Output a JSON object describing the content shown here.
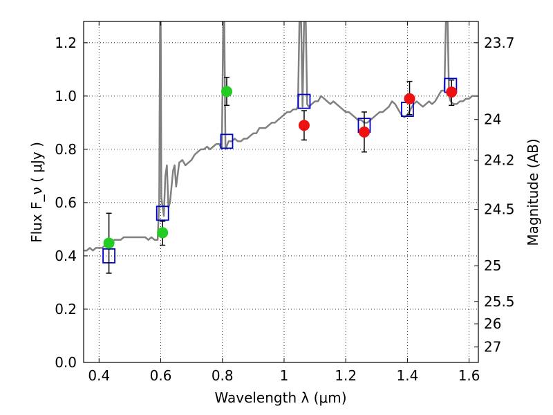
{
  "chart_data": {
    "type": "scatter",
    "xlabel": "Wavelength  λ (μm)",
    "ylabel": "Flux  F_ν  ( μJy )",
    "ylabel_right": "Magnitude (AB)",
    "xlim": [
      0.35,
      1.63
    ],
    "ylim": [
      0.0,
      1.28
    ],
    "grid": true,
    "x_ticks": [
      {
        "value": 0.4,
        "label": "0.4"
      },
      {
        "value": 0.6,
        "label": "0.6"
      },
      {
        "value": 0.8,
        "label": "0.8"
      },
      {
        "value": 1.0,
        "label": "1"
      },
      {
        "value": 1.2,
        "label": "1.2"
      },
      {
        "value": 1.4,
        "label": "1.4"
      },
      {
        "value": 1.6,
        "label": "1.6"
      }
    ],
    "y_ticks": [
      {
        "value": 0.0,
        "label": "0.0"
      },
      {
        "value": 0.2,
        "label": "0.2"
      },
      {
        "value": 0.4,
        "label": "0.4"
      },
      {
        "value": 0.6,
        "label": "0.6"
      },
      {
        "value": 0.8,
        "label": "0.8"
      },
      {
        "value": 1.0,
        "label": "1.0"
      },
      {
        "value": 1.2,
        "label": "1.2"
      }
    ],
    "right_ticks": [
      {
        "label": "23.7",
        "flux": 1.2
      },
      {
        "label": "24",
        "flux": 0.912
      },
      {
        "label": "24.2",
        "flux": 0.759
      },
      {
        "label": "24.5",
        "flux": 0.575
      },
      {
        "label": "25",
        "flux": 0.363
      },
      {
        "label": "25.5",
        "flux": 0.229
      },
      {
        "label": "26",
        "flux": 0.145
      },
      {
        "label": "27",
        "flux": 0.058
      }
    ],
    "series": [
      {
        "kind": "line",
        "color": "#808080",
        "points": [
          [
            0.35,
            0.42
          ],
          [
            0.36,
            0.42
          ],
          [
            0.37,
            0.43
          ],
          [
            0.38,
            0.42
          ],
          [
            0.39,
            0.43
          ],
          [
            0.4,
            0.43
          ],
          [
            0.41,
            0.43
          ],
          [
            0.42,
            0.44
          ],
          [
            0.43,
            0.45
          ],
          [
            0.44,
            0.45
          ],
          [
            0.45,
            0.46
          ],
          [
            0.46,
            0.46
          ],
          [
            0.47,
            0.46
          ],
          [
            0.48,
            0.47
          ],
          [
            0.49,
            0.47
          ],
          [
            0.5,
            0.47
          ],
          [
            0.51,
            0.47
          ],
          [
            0.52,
            0.47
          ],
          [
            0.53,
            0.47
          ],
          [
            0.54,
            0.47
          ],
          [
            0.55,
            0.47
          ],
          [
            0.56,
            0.46
          ],
          [
            0.57,
            0.47
          ],
          [
            0.58,
            0.46
          ],
          [
            0.59,
            0.46
          ],
          [
            0.595,
            0.6
          ],
          [
            0.598,
            1.3
          ],
          [
            0.6,
            1.3
          ],
          [
            0.602,
            0.62
          ],
          [
            0.61,
            0.55
          ],
          [
            0.615,
            0.7
          ],
          [
            0.62,
            0.74
          ],
          [
            0.625,
            0.58
          ],
          [
            0.63,
            0.6
          ],
          [
            0.64,
            0.72
          ],
          [
            0.645,
            0.74
          ],
          [
            0.65,
            0.66
          ],
          [
            0.66,
            0.75
          ],
          [
            0.67,
            0.76
          ],
          [
            0.68,
            0.74
          ],
          [
            0.69,
            0.75
          ],
          [
            0.7,
            0.76
          ],
          [
            0.71,
            0.78
          ],
          [
            0.72,
            0.79
          ],
          [
            0.73,
            0.8
          ],
          [
            0.74,
            0.8
          ],
          [
            0.75,
            0.81
          ],
          [
            0.76,
            0.8
          ],
          [
            0.77,
            0.81
          ],
          [
            0.78,
            0.82
          ],
          [
            0.79,
            0.82
          ],
          [
            0.798,
            0.8
          ],
          [
            0.803,
            1.3
          ],
          [
            0.806,
            1.3
          ],
          [
            0.81,
            0.8
          ],
          [
            0.82,
            0.83
          ],
          [
            0.83,
            0.83
          ],
          [
            0.84,
            0.84
          ],
          [
            0.85,
            0.83
          ],
          [
            0.86,
            0.83
          ],
          [
            0.87,
            0.84
          ],
          [
            0.88,
            0.84
          ],
          [
            0.89,
            0.85
          ],
          [
            0.9,
            0.86
          ],
          [
            0.91,
            0.86
          ],
          [
            0.92,
            0.88
          ],
          [
            0.93,
            0.88
          ],
          [
            0.94,
            0.88
          ],
          [
            0.95,
            0.89
          ],
          [
            0.96,
            0.9
          ],
          [
            0.97,
            0.9
          ],
          [
            0.98,
            0.91
          ],
          [
            0.99,
            0.92
          ],
          [
            1.0,
            0.93
          ],
          [
            1.01,
            0.94
          ],
          [
            1.02,
            0.94
          ],
          [
            1.03,
            0.95
          ],
          [
            1.04,
            0.95
          ],
          [
            1.045,
            0.96
          ],
          [
            1.05,
            1.3
          ],
          [
            1.055,
            1.3
          ],
          [
            1.06,
            0.96
          ],
          [
            1.065,
            1.3
          ],
          [
            1.07,
            1.3
          ],
          [
            1.075,
            0.97
          ],
          [
            1.08,
            0.96
          ],
          [
            1.09,
            0.97
          ],
          [
            1.1,
            0.98
          ],
          [
            1.11,
            0.98
          ],
          [
            1.12,
            1.0
          ],
          [
            1.13,
            0.99
          ],
          [
            1.14,
            0.98
          ],
          [
            1.15,
            0.97
          ],
          [
            1.16,
            0.98
          ],
          [
            1.17,
            0.97
          ],
          [
            1.18,
            0.96
          ],
          [
            1.19,
            0.95
          ],
          [
            1.2,
            0.94
          ],
          [
            1.21,
            0.94
          ],
          [
            1.22,
            0.93
          ],
          [
            1.23,
            0.92
          ],
          [
            1.24,
            0.91
          ],
          [
            1.25,
            0.91
          ],
          [
            1.26,
            0.9
          ],
          [
            1.27,
            0.9
          ],
          [
            1.28,
            0.91
          ],
          [
            1.29,
            0.92
          ],
          [
            1.3,
            0.93
          ],
          [
            1.31,
            0.94
          ],
          [
            1.32,
            0.94
          ],
          [
            1.33,
            0.95
          ],
          [
            1.34,
            0.96
          ],
          [
            1.35,
            0.98
          ],
          [
            1.36,
            0.97
          ],
          [
            1.37,
            0.95
          ],
          [
            1.38,
            0.93
          ],
          [
            1.39,
            0.92
          ],
          [
            1.4,
            0.93
          ],
          [
            1.41,
            0.95
          ],
          [
            1.42,
            0.97
          ],
          [
            1.43,
            0.98
          ],
          [
            1.44,
            0.97
          ],
          [
            1.45,
            0.96
          ],
          [
            1.46,
            0.97
          ],
          [
            1.47,
            0.98
          ],
          [
            1.48,
            0.97
          ],
          [
            1.49,
            0.98
          ],
          [
            1.5,
            1.0
          ],
          [
            1.51,
            1.02
          ],
          [
            1.52,
            1.02
          ],
          [
            1.525,
            1.3
          ],
          [
            1.53,
            1.3
          ],
          [
            1.535,
            1.0
          ],
          [
            1.54,
            0.98
          ],
          [
            1.55,
            0.97
          ],
          [
            1.56,
            0.97
          ],
          [
            1.57,
            0.98
          ],
          [
            1.58,
            0.98
          ],
          [
            1.59,
            0.99
          ],
          [
            1.6,
            0.99
          ],
          [
            1.61,
            1.0
          ],
          [
            1.62,
            1.0
          ],
          [
            1.63,
            1.0
          ]
        ]
      },
      {
        "kind": "open-squares",
        "color": "#0000cc",
        "points": [
          [
            0.432,
            0.4
          ],
          [
            0.606,
            0.56
          ],
          [
            0.814,
            0.83
          ],
          [
            1.065,
            0.98
          ],
          [
            1.26,
            0.89
          ],
          [
            1.4,
            0.95
          ],
          [
            1.54,
            1.04
          ]
        ]
      },
      {
        "kind": "filled-circles",
        "color": "#22cc22",
        "points": [
          {
            "x": 0.432,
            "y": 0.448,
            "lo": 0.335,
            "hi": 0.56
          },
          {
            "x": 0.606,
            "y": 0.487,
            "lo": 0.44,
            "hi": 0.53
          },
          {
            "x": 0.814,
            "y": 1.017,
            "lo": 0.965,
            "hi": 1.07
          }
        ]
      },
      {
        "kind": "filled-circles",
        "color": "#ee1111",
        "points": [
          {
            "x": 1.065,
            "y": 0.89,
            "lo": 0.835,
            "hi": 0.945
          },
          {
            "x": 1.26,
            "y": 0.865,
            "lo": 0.79,
            "hi": 0.94
          },
          {
            "x": 1.407,
            "y": 0.99,
            "lo": 0.93,
            "hi": 1.055
          },
          {
            "x": 1.543,
            "y": 1.015,
            "lo": 0.965,
            "hi": 1.06
          }
        ]
      }
    ]
  }
}
